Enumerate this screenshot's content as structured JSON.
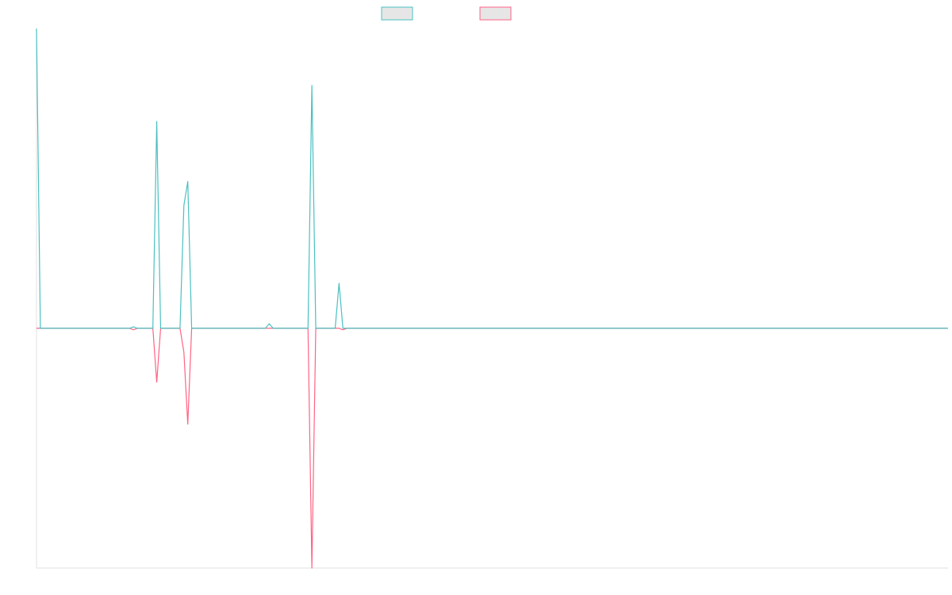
{
  "chart_data": {
    "type": "line",
    "xlim": [
      0,
      235
    ],
    "ylim": [
      -0.8,
      1.0
    ],
    "series": [
      {
        "color": "#ff6384",
        "x": [
          0,
          24,
          25,
          26,
          30,
          31,
          32,
          37,
          38,
          39,
          40,
          70,
          71,
          72,
          78,
          79,
          80,
          235
        ],
        "values": [
          0,
          0,
          -0.005,
          0,
          0,
          -0.18,
          0,
          0,
          -0.08,
          -0.32,
          0,
          0,
          -0.8,
          0,
          0,
          -0.005,
          0,
          0
        ]
      },
      {
        "color": "#4bc0c0",
        "x": [
          0,
          1,
          24,
          25,
          26,
          30,
          31,
          32,
          37,
          38,
          39,
          40,
          59,
          60,
          61,
          70,
          71,
          72,
          77,
          78,
          79,
          235
        ],
        "values": [
          1.0,
          0,
          0,
          0.005,
          0,
          0,
          0.69,
          0,
          0,
          0.41,
          0.49,
          0,
          0,
          0.015,
          0,
          0,
          0.81,
          0,
          0,
          0.15,
          0,
          0
        ]
      }
    ]
  }
}
